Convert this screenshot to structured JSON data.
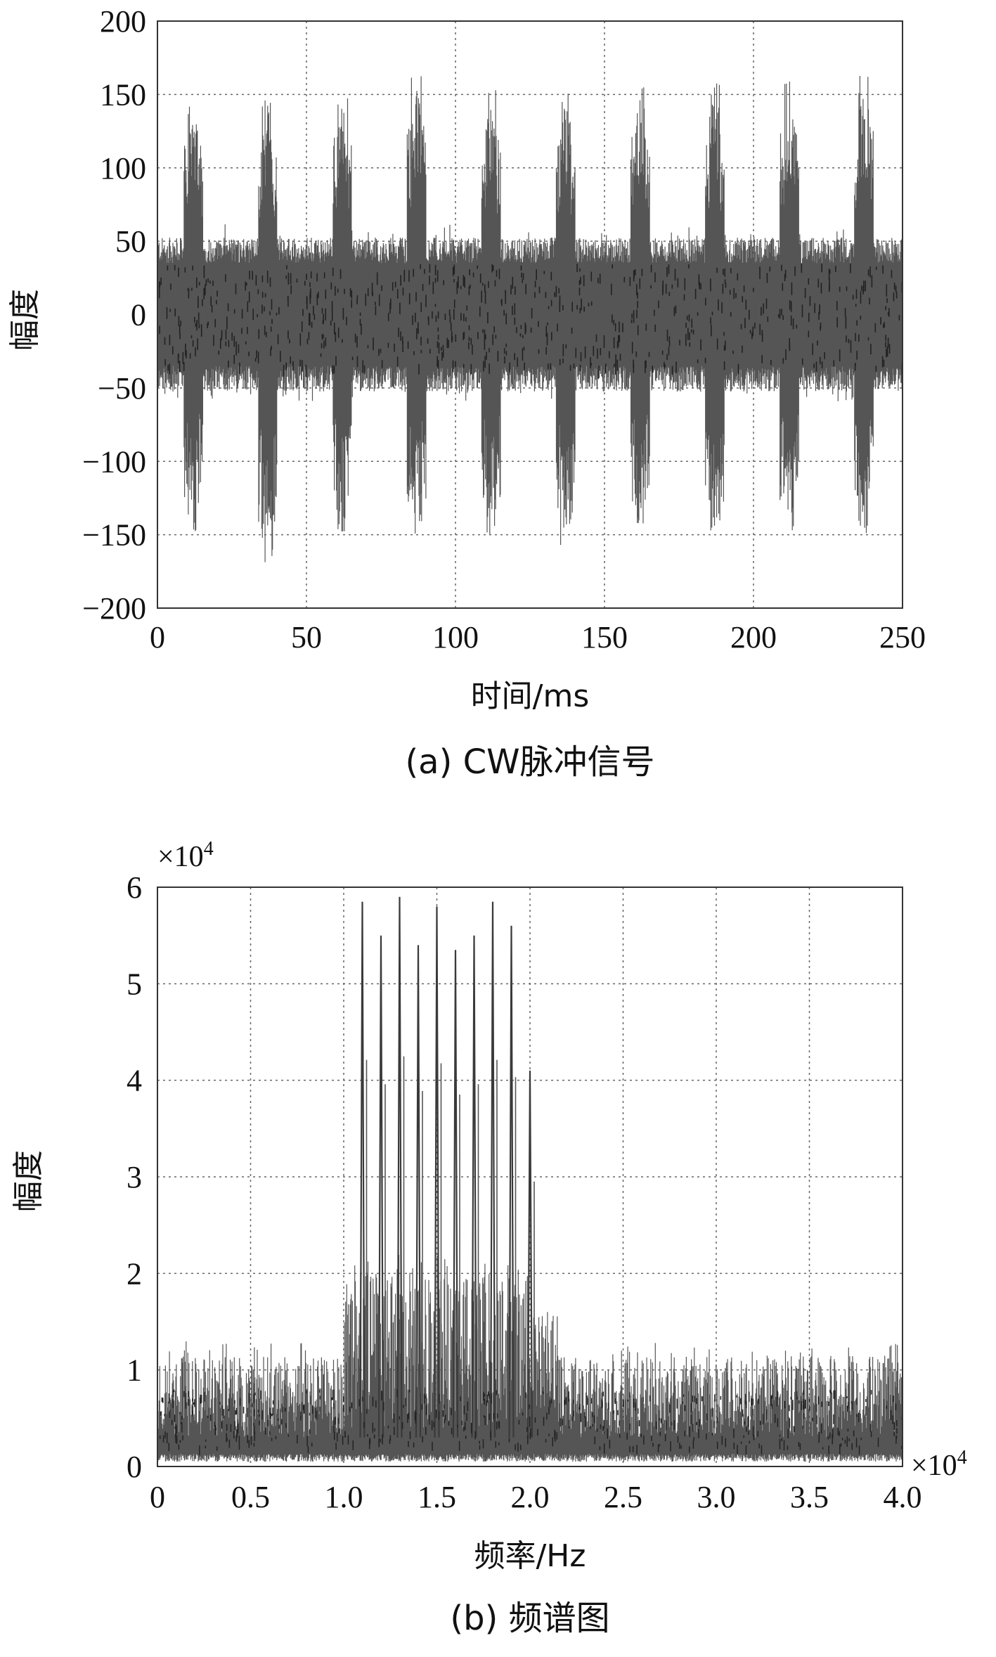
{
  "chart_data": [
    {
      "type": "line",
      "panel": "a",
      "caption": "(a) CW脉冲信号",
      "xlabel": "时间/ms",
      "ylabel": "幅度",
      "xlim": [
        0,
        250
      ],
      "ylim": [
        -200,
        200
      ],
      "xticks": [
        "0",
        "50",
        "100",
        "150",
        "200",
        "250"
      ],
      "yticks": [
        "200",
        "150",
        "100",
        "50",
        "0",
        "−50",
        "−100",
        "−150",
        "−200"
      ],
      "grid": true,
      "series_color": "#555555",
      "noise_band": [
        -50,
        50
      ],
      "pulse_centers_ms": [
        12,
        37,
        62,
        87,
        112,
        137,
        162,
        187,
        212,
        237
      ],
      "pulse_peaks": [
        148,
        148,
        152,
        165,
        155,
        152,
        155,
        160,
        160,
        163
      ],
      "pulse_troughs": [
        -148,
        -172,
        -150,
        -150,
        -150,
        -160,
        -150,
        -150,
        -150,
        -150
      ]
    },
    {
      "type": "line",
      "panel": "b",
      "caption": "(b) 频谱图",
      "xlabel": "频率/Hz",
      "ylabel": "幅度",
      "xlim": [
        0,
        4.0
      ],
      "ylim": [
        0,
        6
      ],
      "x_multiplier_text": "×10",
      "x_multiplier_exp": "4",
      "y_multiplier_text": "×10",
      "y_multiplier_exp": "4",
      "xticks": [
        "0",
        "0.5",
        "1.0",
        "1.5",
        "2.0",
        "2.5",
        "3.0",
        "3.5",
        "4.0"
      ],
      "yticks": [
        "6",
        "5",
        "4",
        "3",
        "2",
        "1",
        "0"
      ],
      "grid": true,
      "series_color": "#555555",
      "noise_level": 1.0,
      "band_range": [
        1.0,
        2.0
      ],
      "peak_freqs": [
        1.1,
        1.2,
        1.3,
        1.4,
        1.5,
        1.6,
        1.7,
        1.8,
        1.9,
        2.0
      ],
      "peak_heights": [
        5.85,
        5.5,
        5.9,
        5.4,
        5.8,
        5.35,
        5.5,
        5.85,
        5.6,
        4.1
      ]
    }
  ]
}
